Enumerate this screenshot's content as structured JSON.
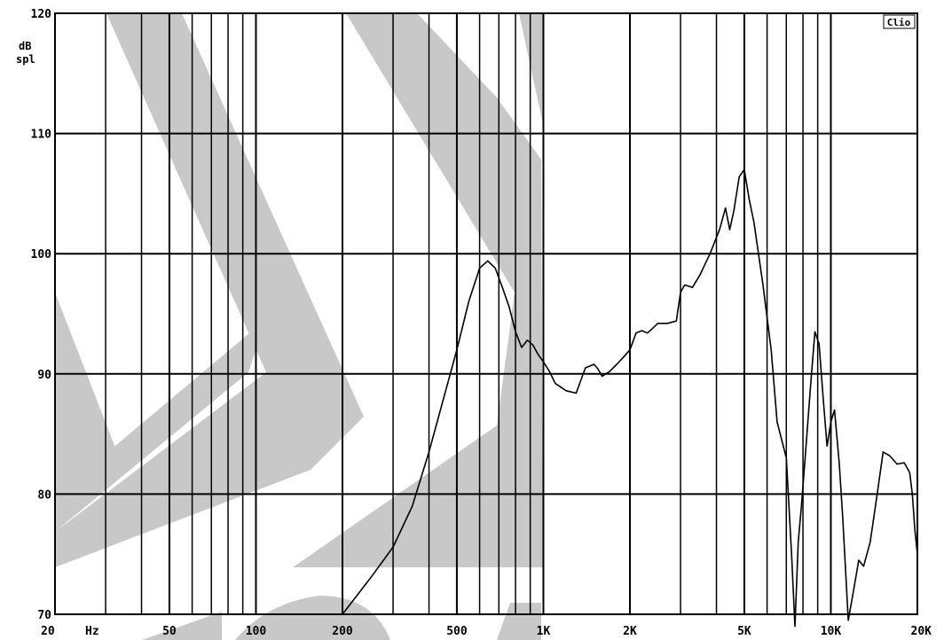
{
  "chart_data": {
    "type": "line",
    "title": "",
    "xscale": "log",
    "xlim": [
      20,
      20000
    ],
    "ylim": [
      70,
      120
    ],
    "ylabel_lines": [
      "dB",
      "spl"
    ],
    "xunit": "Hz",
    "badge": "Clio",
    "grid": true,
    "watermark_color": "#c8c8c8",
    "x_ticks": [
      {
        "value": 20,
        "label": "20"
      },
      {
        "value": 50,
        "label": "50"
      },
      {
        "value": 100,
        "label": "100"
      },
      {
        "value": 200,
        "label": "200"
      },
      {
        "value": 500,
        "label": "500"
      },
      {
        "value": 1000,
        "label": "1K"
      },
      {
        "value": 2000,
        "label": "2K"
      },
      {
        "value": 5000,
        "label": "5K"
      },
      {
        "value": 10000,
        "label": "10K"
      },
      {
        "value": 20000,
        "label": "20K"
      }
    ],
    "y_ticks": [
      {
        "value": 70,
        "label": "70"
      },
      {
        "value": 80,
        "label": "80"
      },
      {
        "value": 90,
        "label": "90"
      },
      {
        "value": 100,
        "label": "100"
      },
      {
        "value": 110,
        "label": "110"
      },
      {
        "value": 120,
        "label": "120"
      }
    ],
    "series": [
      {
        "color": "#000000",
        "points": [
          [
            200,
            70.0
          ],
          [
            250,
            73.0
          ],
          [
            300,
            75.6
          ],
          [
            350,
            79.0
          ],
          [
            400,
            83.5
          ],
          [
            450,
            88.0
          ],
          [
            500,
            92.0
          ],
          [
            550,
            96.0
          ],
          [
            600,
            98.8
          ],
          [
            640,
            99.4
          ],
          [
            680,
            98.8
          ],
          [
            720,
            97.2
          ],
          [
            760,
            95.6
          ],
          [
            800,
            93.5
          ],
          [
            840,
            92.2
          ],
          [
            880,
            92.8
          ],
          [
            920,
            92.4
          ],
          [
            960,
            91.6
          ],
          [
            1000,
            91.0
          ],
          [
            1050,
            90.2
          ],
          [
            1100,
            89.2
          ],
          [
            1200,
            88.6
          ],
          [
            1300,
            88.4
          ],
          [
            1400,
            90.5
          ],
          [
            1500,
            90.8
          ],
          [
            1550,
            90.4
          ],
          [
            1600,
            89.8
          ],
          [
            1700,
            90.2
          ],
          [
            1800,
            90.8
          ],
          [
            1900,
            91.4
          ],
          [
            2000,
            92.0
          ],
          [
            2100,
            93.4
          ],
          [
            2200,
            93.6
          ],
          [
            2300,
            93.4
          ],
          [
            2400,
            93.8
          ],
          [
            2500,
            94.2
          ],
          [
            2700,
            94.2
          ],
          [
            2900,
            94.4
          ],
          [
            3000,
            96.8
          ],
          [
            3100,
            97.4
          ],
          [
            3300,
            97.2
          ],
          [
            3500,
            98.2
          ],
          [
            3800,
            100.0
          ],
          [
            4100,
            102.0
          ],
          [
            4300,
            103.8
          ],
          [
            4450,
            102.0
          ],
          [
            4600,
            103.6
          ],
          [
            4800,
            106.4
          ],
          [
            5000,
            107.0
          ],
          [
            5200,
            104.5
          ],
          [
            5400,
            102.6
          ],
          [
            5800,
            97.5
          ],
          [
            6200,
            92.0
          ],
          [
            6500,
            86.0
          ],
          [
            7000,
            83.0
          ],
          [
            7300,
            75.0
          ],
          [
            7500,
            69.0
          ],
          [
            7700,
            76.0
          ],
          [
            7900,
            79.0
          ],
          [
            8200,
            84.0
          ],
          [
            8500,
            89.0
          ],
          [
            8800,
            93.5
          ],
          [
            9100,
            92.5
          ],
          [
            9400,
            88.0
          ],
          [
            9700,
            84.0
          ],
          [
            10000,
            86.0
          ],
          [
            10300,
            87.0
          ],
          [
            10700,
            82.5
          ],
          [
            11000,
            78.0
          ],
          [
            11500,
            69.5
          ],
          [
            12000,
            72.0
          ],
          [
            12500,
            74.5
          ],
          [
            13000,
            74.0
          ],
          [
            13700,
            76.0
          ],
          [
            14500,
            80.0
          ],
          [
            15200,
            83.5
          ],
          [
            16000,
            83.2
          ],
          [
            17000,
            82.5
          ],
          [
            18000,
            82.6
          ],
          [
            18800,
            81.8
          ],
          [
            19200,
            80.0
          ],
          [
            19600,
            77.0
          ],
          [
            20000,
            75.0
          ]
        ]
      }
    ]
  }
}
